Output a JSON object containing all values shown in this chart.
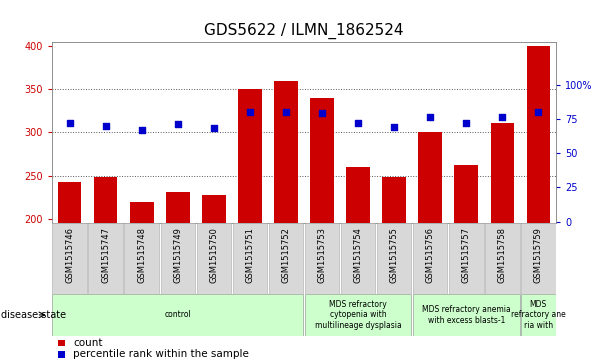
{
  "title": "GDS5622 / ILMN_1862524",
  "samples": [
    "GSM1515746",
    "GSM1515747",
    "GSM1515748",
    "GSM1515749",
    "GSM1515750",
    "GSM1515751",
    "GSM1515752",
    "GSM1515753",
    "GSM1515754",
    "GSM1515755",
    "GSM1515756",
    "GSM1515757",
    "GSM1515758",
    "GSM1515759"
  ],
  "counts": [
    243,
    248,
    220,
    231,
    228,
    350,
    360,
    340,
    260,
    248,
    301,
    262,
    311,
    400
  ],
  "percentiles": [
    72,
    70,
    67,
    71,
    68,
    80,
    80,
    79,
    72,
    69,
    76,
    72,
    76,
    80
  ],
  "ylim_left": [
    195,
    405
  ],
  "ylim_right": [
    -1.25,
    131.25
  ],
  "yticks_left": [
    200,
    250,
    300,
    350,
    400
  ],
  "yticks_right": [
    0,
    25,
    50,
    75,
    100
  ],
  "bar_color": "#cc0000",
  "scatter_color": "#0000cc",
  "dot_grid_color": "#555555",
  "bg_plot": "#ffffff",
  "disease_groups": [
    {
      "label": "control",
      "start": 0,
      "end": 7,
      "color": "#ccffcc"
    },
    {
      "label": "MDS refractory\ncytopenia with\nmultilineage dysplasia",
      "start": 7,
      "end": 10,
      "color": "#ccffcc"
    },
    {
      "label": "MDS refractory anemia\nwith excess blasts-1",
      "start": 10,
      "end": 13,
      "color": "#ccffcc"
    },
    {
      "label": "MDS\nrefractory ane\nria with",
      "start": 13,
      "end": 14,
      "color": "#ccffcc"
    }
  ],
  "xlabel_disease": "disease state",
  "legend_count": "count",
  "legend_pct": "percentile rank within the sample",
  "title_fontsize": 11,
  "tick_fontsize": 7,
  "label_fontsize": 7.5,
  "sample_box_color": "#d8d8d8",
  "sample_box_edge": "#aaaaaa"
}
